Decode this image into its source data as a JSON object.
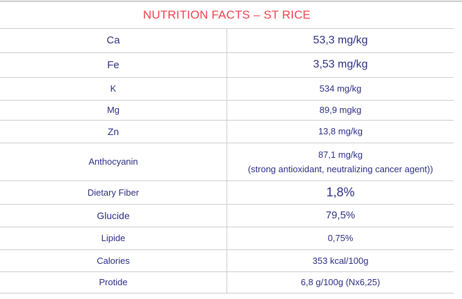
{
  "colors": {
    "header_red": "#ef404c",
    "text_navy": "#2b2e83",
    "border_gray": "#cccccc"
  },
  "table": {
    "header": "NUTRITION FACTS – ST RICE",
    "rows": [
      {
        "label": "Ca",
        "value": "53,3 mg/kg"
      },
      {
        "label": "Fe",
        "value": "3,53 mg/kg"
      },
      {
        "label": "K",
        "value": "534 mg/kg"
      },
      {
        "label": "Mg",
        "value": "89,9 mgkg"
      },
      {
        "label": "Zn",
        "value": "13,8 mg/kg"
      },
      {
        "label": "Anthocyanin",
        "value": "87,1 mg/kg",
        "note": "(strong antioxidant, neutralizing cancer agent))"
      },
      {
        "label": "Dietary Fiber",
        "value": "1,8%"
      },
      {
        "label": "Glucide",
        "value": "79,5%"
      },
      {
        "label": "Lipide",
        "value": "0,75%"
      },
      {
        "label": "Calories",
        "value": "353 kcal/100g"
      },
      {
        "label": "Protide",
        "value": "6,8 g/100g (Nx6,25)"
      }
    ]
  }
}
